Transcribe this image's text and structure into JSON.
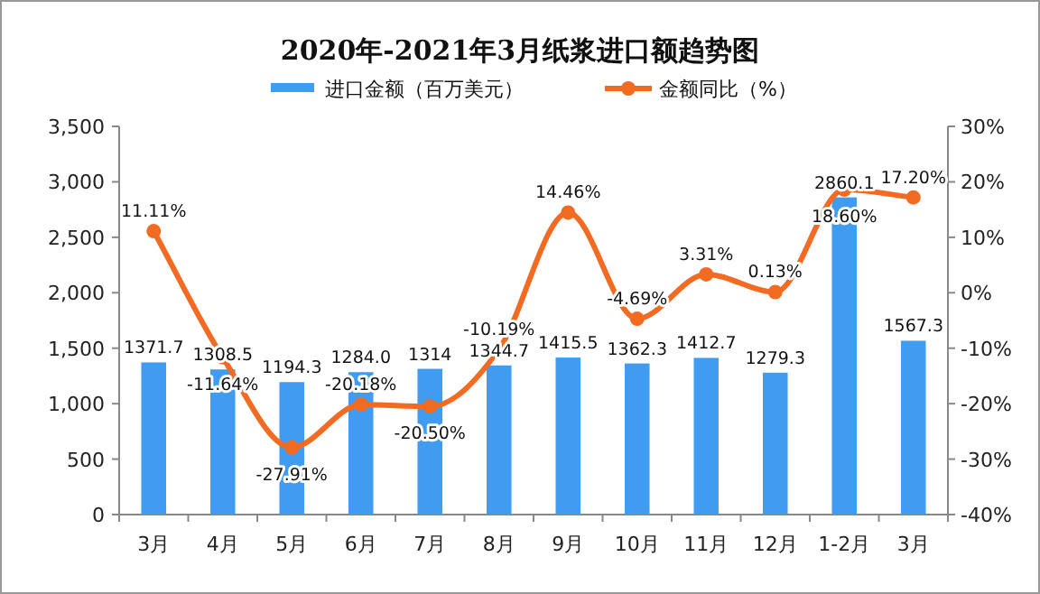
{
  "chart_data": {
    "type": "bar",
    "title": "2020年-2021年3月纸浆进口额趋势图",
    "categories": [
      "3月",
      "4月",
      "5月",
      "6月",
      "7月",
      "8月",
      "9月",
      "10月",
      "11月",
      "12月",
      "1-2月",
      "3月"
    ],
    "series": [
      {
        "name": "进口金额（百万美元）",
        "color": "#3f9cf0",
        "values": [
          1371.7,
          1308.5,
          1194.3,
          1284.0,
          1314,
          1344.7,
          1415.5,
          1362.3,
          1412.7,
          1279.3,
          2860.1,
          1567.3
        ],
        "value_labels": [
          "1371.7",
          "1308.5",
          "1194.3",
          "1284.0",
          "1314",
          "1344.7",
          "1415.5",
          "1362.3",
          "1412.7",
          "1279.3",
          "2860.1",
          "1567.3"
        ]
      },
      {
        "name": "金额同比（%）",
        "type": "line",
        "axis": "y2",
        "color": "#f26b22",
        "marker": "circle",
        "values": [
          11.11,
          -11.64,
          -27.91,
          -20.18,
          -20.5,
          -10.19,
          14.46,
          -4.69,
          3.31,
          0.13,
          18.6,
          17.2
        ],
        "value_labels": [
          "11.11%",
          "-11.64%",
          "-27.91%",
          "-20.18%",
          "-20.50%",
          "-10.19%",
          "14.46%",
          "-4.69%",
          "3.31%",
          "0.13%",
          "18.60%",
          "17.20%"
        ]
      }
    ],
    "ylim": [
      0,
      3500
    ],
    "yticks": [
      {
        "value": 0,
        "label": "0"
      },
      {
        "value": 500,
        "label": "500"
      },
      {
        "value": 1000,
        "label": "1,000"
      },
      {
        "value": 1500,
        "label": "1,500"
      },
      {
        "value": 2000,
        "label": "2,000"
      },
      {
        "value": 2500,
        "label": "2,500"
      },
      {
        "value": 3000,
        "label": "3,000"
      },
      {
        "value": 3500,
        "label": "3,500"
      }
    ],
    "y2lim": [
      -40,
      30
    ],
    "y2ticks": [
      {
        "value": -40,
        "label": "-40%"
      },
      {
        "value": -30,
        "label": "-30%"
      },
      {
        "value": -20,
        "label": "-20%"
      },
      {
        "value": -10,
        "label": "-10%"
      },
      {
        "value": 0,
        "label": "0%"
      },
      {
        "value": 10,
        "label": "10%"
      },
      {
        "value": 20,
        "label": "20%"
      },
      {
        "value": 30,
        "label": "30%"
      }
    ],
    "legend": "top",
    "grid": false
  }
}
